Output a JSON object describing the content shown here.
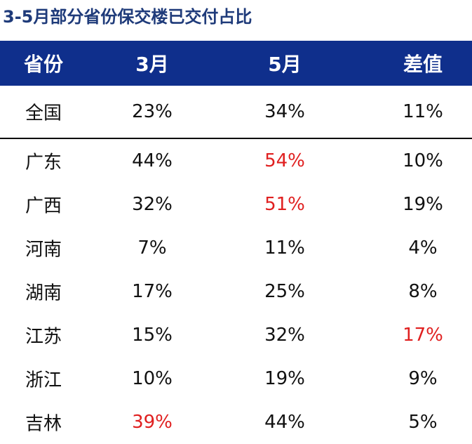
{
  "title": "3-5月部分省份保交楼已交付占比",
  "colors": {
    "header_bg": "#0f2f8c",
    "title_color": "#1f3b7a",
    "highlight": "#e02020"
  },
  "chart_data": {
    "type": "table",
    "title": "3-5月部分省份保交楼已交付占比",
    "columns": [
      "省份",
      "3月",
      "5月",
      "差值"
    ],
    "rows": [
      {
        "province": "全国",
        "march": "23%",
        "may": "34%",
        "diff": "11%",
        "highlight": []
      },
      {
        "province": "广东",
        "march": "44%",
        "may": "54%",
        "diff": "10%",
        "highlight": [
          "may"
        ]
      },
      {
        "province": "广西",
        "march": "32%",
        "may": "51%",
        "diff": "19%",
        "highlight": [
          "may"
        ]
      },
      {
        "province": "河南",
        "march": "7%",
        "may": "11%",
        "diff": "4%",
        "highlight": []
      },
      {
        "province": "湖南",
        "march": "17%",
        "may": "25%",
        "diff": "8%",
        "highlight": []
      },
      {
        "province": "江苏",
        "march": "15%",
        "may": "32%",
        "diff": "17%",
        "highlight": [
          "diff"
        ]
      },
      {
        "province": "浙江",
        "march": "10%",
        "may": "19%",
        "diff": "9%",
        "highlight": []
      },
      {
        "province": "吉林",
        "march": "39%",
        "may": "44%",
        "diff": "5%",
        "highlight": [
          "march"
        ]
      }
    ]
  }
}
